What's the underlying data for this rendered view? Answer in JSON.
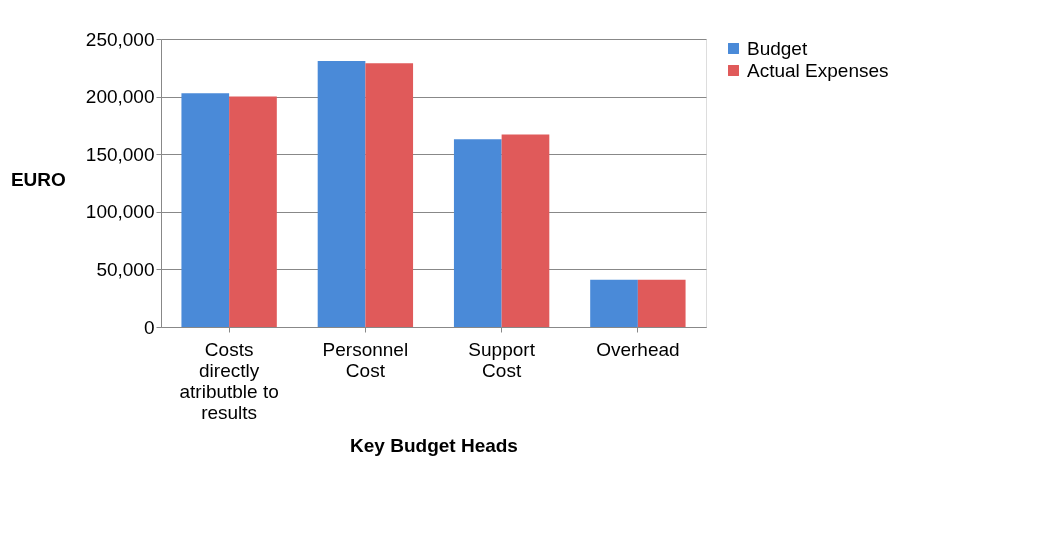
{
  "chart_data": {
    "type": "bar",
    "xlabel": "Key Budget Heads",
    "ylabel": "EURO",
    "categories": [
      "Costs\ndirectly\natributble to\nresults",
      "Personnel\nCost",
      "Support\nCost",
      "Overhead"
    ],
    "series": [
      {
        "name": "Budget",
        "color": "#4a8ad8",
        "values": [
          203000,
          231000,
          163000,
          41000
        ]
      },
      {
        "name": "Actual Expenses",
        "color": "#e05a5a",
        "values": [
          200000,
          229000,
          167000,
          41000
        ]
      }
    ],
    "ylim": [
      0,
      250000
    ],
    "yticks": [
      {
        "value": 0,
        "label": "0"
      },
      {
        "value": 50000,
        "label": "50,000"
      },
      {
        "value": 100000,
        "label": "100,000"
      },
      {
        "value": 150000,
        "label": "150,000"
      },
      {
        "value": 200000,
        "label": "200,000"
      },
      {
        "value": 250000,
        "label": "250,000"
      }
    ],
    "grid": "y",
    "legend": "right"
  }
}
